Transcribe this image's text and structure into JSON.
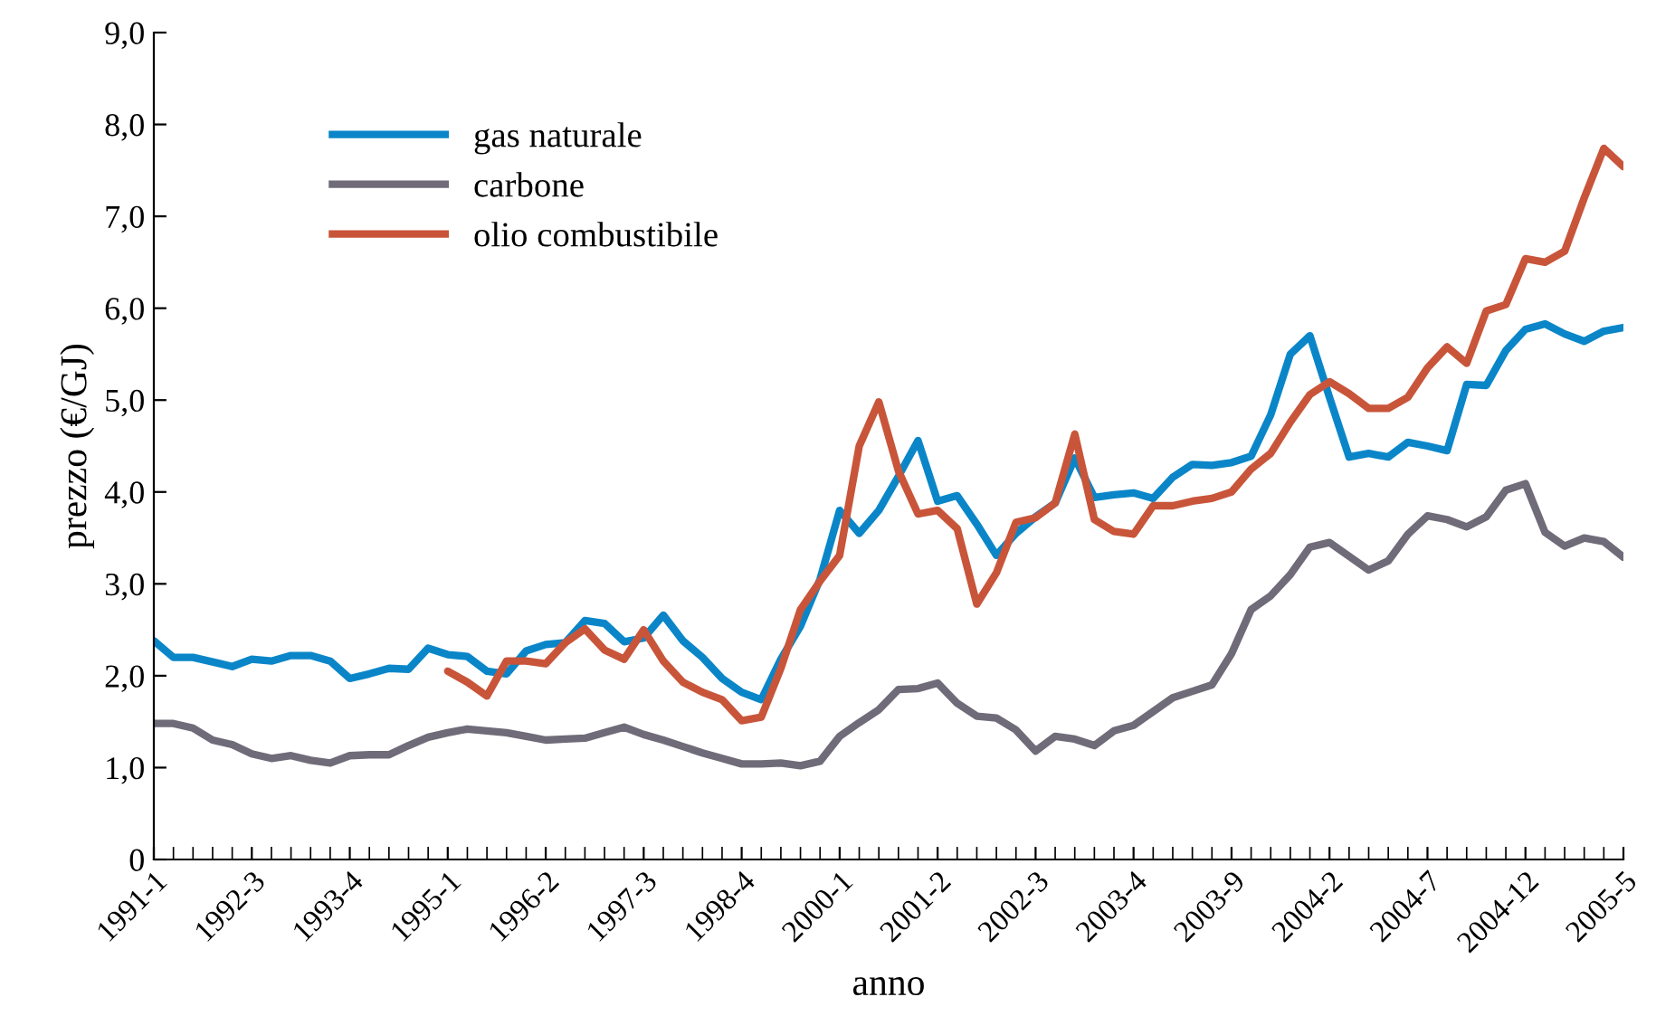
{
  "chart_data": {
    "type": "line",
    "xlabel": "anno",
    "ylabel": "prezzo (€/GJ)",
    "categories": [
      "1991-1",
      null,
      null,
      null,
      null,
      "1992-3",
      null,
      null,
      null,
      null,
      "1993-4",
      null,
      null,
      null,
      null,
      "1995-1",
      null,
      null,
      null,
      null,
      "1996-2",
      null,
      null,
      null,
      null,
      "1997-3",
      null,
      null,
      null,
      null,
      "1998-4",
      null,
      null,
      null,
      null,
      "2000-1",
      null,
      null,
      null,
      null,
      "2001-2",
      null,
      null,
      null,
      null,
      "2002-3",
      null,
      null,
      null,
      null,
      "2003-4",
      null,
      null,
      null,
      null,
      "2003-9",
      null,
      null,
      null,
      null,
      "2004-2",
      null,
      null,
      null,
      null,
      "2004-7",
      null,
      null,
      null,
      null,
      "2004-12",
      null,
      null,
      null,
      null,
      "2005-5"
    ],
    "series": [
      {
        "name": "gas naturale",
        "color": "#0a86c8",
        "values": [
          2.38,
          2.2,
          2.2,
          2.15,
          2.1,
          2.18,
          2.16,
          2.22,
          2.22,
          2.16,
          1.97,
          2.02,
          2.08,
          2.07,
          2.3,
          2.23,
          2.21,
          2.05,
          2.02,
          2.27,
          2.34,
          2.36,
          2.6,
          2.57,
          2.37,
          2.41,
          2.66,
          2.38,
          2.2,
          1.97,
          1.82,
          1.74,
          2.18,
          2.54,
          3.05,
          3.8,
          3.55,
          3.8,
          4.17,
          4.56,
          3.9,
          3.96,
          3.65,
          3.31,
          3.55,
          3.73,
          3.88,
          4.37,
          3.94,
          3.97,
          3.99,
          3.93,
          4.16,
          4.3,
          4.29,
          4.32,
          4.39,
          4.84,
          5.5,
          5.7,
          5.03,
          4.38,
          4.42,
          4.38,
          4.54,
          4.5,
          4.45,
          5.17,
          5.16,
          5.54,
          5.77,
          5.83,
          5.72,
          5.64,
          5.75,
          5.79
        ]
      },
      {
        "name": "carbone",
        "color": "#6f6b78",
        "values": [
          1.48,
          1.48,
          1.43,
          1.3,
          1.25,
          1.15,
          1.1,
          1.13,
          1.08,
          1.05,
          1.13,
          1.14,
          1.14,
          1.24,
          1.33,
          1.38,
          1.42,
          1.4,
          1.38,
          1.34,
          1.3,
          1.31,
          1.32,
          1.38,
          1.44,
          1.36,
          1.3,
          1.23,
          1.16,
          1.1,
          1.04,
          1.04,
          1.05,
          1.02,
          1.07,
          1.34,
          1.49,
          1.63,
          1.85,
          1.86,
          1.92,
          1.7,
          1.56,
          1.54,
          1.41,
          1.18,
          1.34,
          1.31,
          1.24,
          1.4,
          1.46,
          1.61,
          1.76,
          1.83,
          1.9,
          2.24,
          2.72,
          2.87,
          3.1,
          3.4,
          3.45,
          3.3,
          3.15,
          3.25,
          3.54,
          3.74,
          3.7,
          3.62,
          3.73,
          4.02,
          4.09,
          3.56,
          3.41,
          3.5,
          3.46,
          3.29
        ]
      },
      {
        "name": "olio combustibile",
        "color": "#c8553a",
        "values": [
          null,
          null,
          null,
          null,
          null,
          null,
          null,
          null,
          null,
          null,
          null,
          null,
          null,
          null,
          null,
          2.05,
          1.93,
          1.78,
          2.16,
          2.16,
          2.13,
          2.36,
          2.51,
          2.28,
          2.18,
          2.5,
          2.16,
          1.93,
          1.82,
          1.74,
          1.51,
          1.55,
          2.08,
          2.72,
          3.03,
          3.31,
          4.5,
          4.98,
          4.23,
          3.76,
          3.8,
          3.6,
          2.78,
          3.12,
          3.67,
          3.72,
          3.88,
          4.63,
          3.7,
          3.57,
          3.54,
          3.85,
          3.85,
          3.9,
          3.93,
          4.0,
          4.25,
          4.42,
          4.76,
          5.06,
          5.2,
          5.07,
          4.91,
          4.91,
          5.03,
          5.35,
          5.58,
          5.4,
          5.97,
          6.04,
          6.54,
          6.5,
          6.62,
          7.2,
          7.74,
          7.54
        ]
      }
    ],
    "ylim": [
      0,
      9
    ],
    "yticks": [
      0,
      {
        "value": 1,
        "label": "1,0"
      },
      {
        "value": 2,
        "label": "2,0"
      },
      {
        "value": 3,
        "label": "3,0"
      },
      {
        "value": 4,
        "label": "4,0"
      },
      {
        "value": 5,
        "label": "5,0"
      },
      {
        "value": 6,
        "label": "6,0"
      },
      {
        "value": 7,
        "label": "7,0"
      },
      {
        "value": 8,
        "label": "8,0"
      },
      {
        "value": 9,
        "label": "9,0"
      }
    ],
    "legend": "top left",
    "grid": false,
    "line_style": "solid",
    "marker": "none"
  }
}
